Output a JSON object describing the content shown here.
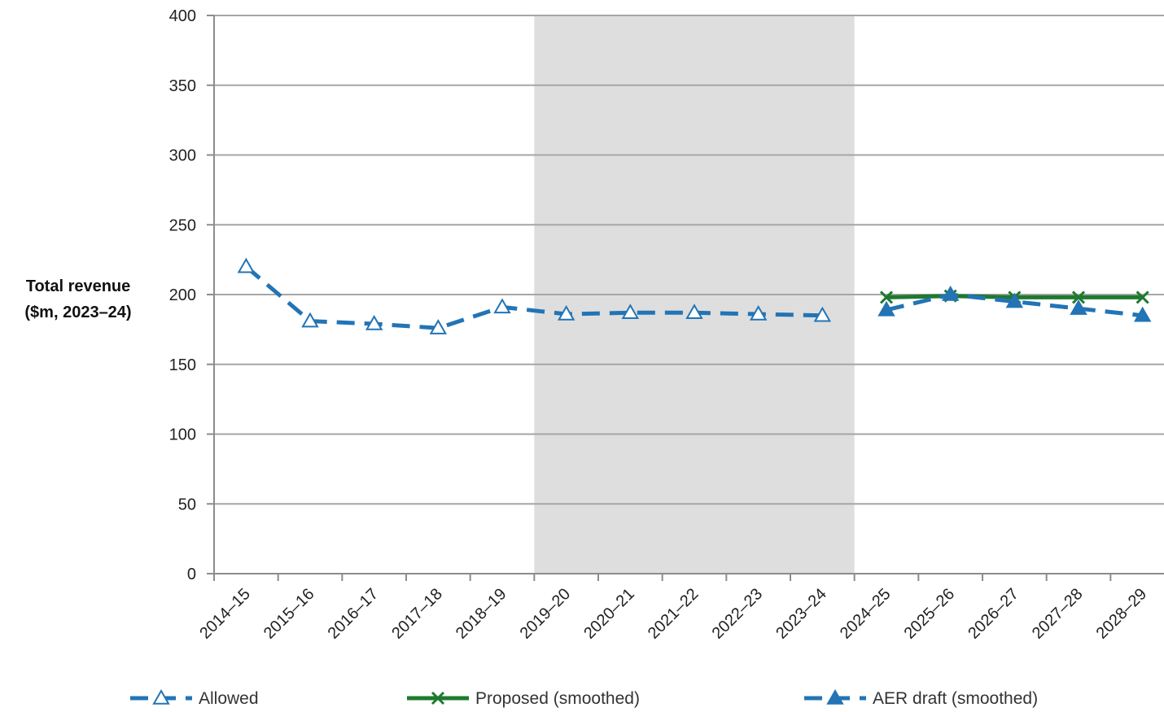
{
  "chart_data": {
    "type": "line",
    "ylabel": [
      "Total revenue",
      "($m, 2023–24)"
    ],
    "ylim": [
      0,
      400
    ],
    "yticks": [
      0,
      50,
      100,
      150,
      200,
      250,
      300,
      350,
      400
    ],
    "categories": [
      "2014–15",
      "2015–16",
      "2016–17",
      "2017–18",
      "2018–19",
      "2019–20",
      "2020–21",
      "2021–22",
      "2022–23",
      "2023–24",
      "2024–25",
      "2025–26",
      "2026–27",
      "2027–28",
      "2028–29"
    ],
    "grid": true,
    "shaded_region": {
      "from": "2019–20",
      "to": "2023–24",
      "color": "#dedede"
    },
    "legend_position": "bottom",
    "series": [
      {
        "name": "Allowed",
        "color": "#2274b5",
        "line": "dashed",
        "marker": "open-triangle",
        "values": [
          220,
          181,
          179,
          176,
          191,
          186,
          187,
          187,
          186,
          185,
          null,
          null,
          null,
          null,
          null
        ]
      },
      {
        "name": "Proposed (smoothed)",
        "color": "#1e7a2e",
        "line": "solid",
        "marker": "x",
        "values": [
          null,
          null,
          null,
          null,
          null,
          null,
          null,
          null,
          null,
          null,
          198,
          199,
          198,
          198,
          198
        ]
      },
      {
        "name": "AER draft (smoothed)",
        "color": "#2274b5",
        "line": "dashed",
        "marker": "filled-triangle",
        "values": [
          null,
          null,
          null,
          null,
          null,
          null,
          null,
          null,
          null,
          null,
          189,
          200,
          195,
          190,
          185
        ]
      }
    ]
  }
}
